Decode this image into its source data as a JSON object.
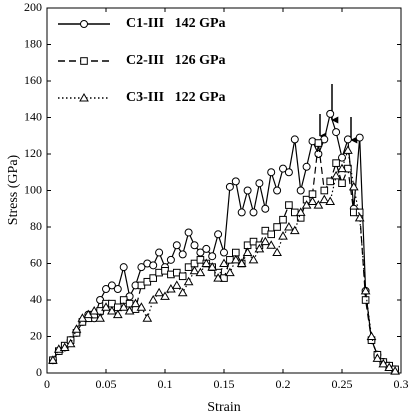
{
  "chart_data": {
    "type": "line",
    "xlabel": "Strain",
    "ylabel": "Stress (GPa)",
    "xlim": [
      0,
      0.3
    ],
    "ylim": [
      0,
      200
    ],
    "xticks": [
      0,
      0.05,
      0.1,
      0.15,
      0.2,
      0.25,
      0.3
    ],
    "yticks": [
      0,
      20,
      40,
      60,
      80,
      100,
      120,
      140,
      160,
      180,
      200
    ],
    "grid": false,
    "legend": "upper left",
    "x": [
      0.005,
      0.01,
      0.015,
      0.02,
      0.025,
      0.03,
      0.035,
      0.04,
      0.045,
      0.05,
      0.055,
      0.06,
      0.065,
      0.07,
      0.075,
      0.08,
      0.085,
      0.09,
      0.095,
      0.1,
      0.105,
      0.11,
      0.115,
      0.12,
      0.125,
      0.13,
      0.135,
      0.14,
      0.145,
      0.15,
      0.155,
      0.16,
      0.165,
      0.17,
      0.175,
      0.18,
      0.185,
      0.19,
      0.195,
      0.2,
      0.205,
      0.21,
      0.215,
      0.22,
      0.225,
      0.23,
      0.235,
      0.24,
      0.245,
      0.25,
      0.255,
      0.26,
      0.265,
      0.27,
      0.275,
      0.28,
      0.285,
      0.29,
      0.295
    ],
    "series": [
      {
        "name": "C1-III   142 GPa",
        "color": "#000000",
        "dash": "solid",
        "marker": "circle",
        "values": [
          7,
          12,
          14,
          18,
          22,
          28,
          32,
          30,
          40,
          46,
          48,
          46,
          58,
          42,
          48,
          58,
          60,
          59,
          66,
          58,
          62,
          70,
          65,
          77,
          70,
          66,
          68,
          64,
          76,
          66,
          102,
          105,
          88,
          100,
          88,
          104,
          90,
          110,
          100,
          112,
          110,
          128,
          100,
          113,
          127,
          120,
          128,
          142,
          132,
          118,
          128,
          90,
          129,
          45,
          18,
          10,
          6,
          4,
          2
        ]
      },
      {
        "name": "C2-III   126 GPa",
        "color": "#000000",
        "dash": "dashed",
        "marker": "square",
        "values": [
          7,
          12,
          15,
          18,
          22,
          28,
          30,
          32,
          34,
          38,
          38,
          36,
          40,
          38,
          35,
          48,
          50,
          52,
          55,
          56,
          54,
          55,
          53,
          58,
          60,
          62,
          60,
          58,
          55,
          52,
          62,
          66,
          60,
          70,
          72,
          70,
          78,
          76,
          80,
          84,
          92,
          88,
          85,
          95,
          98,
          126,
          100,
          105,
          115,
          104,
          112,
          88,
          88,
          40,
          18,
          10,
          6,
          4,
          2
        ]
      },
      {
        "name": "C3-III   122 GPa",
        "color": "#000000",
        "dash": "dotted",
        "marker": "triangle",
        "values": [
          7,
          13,
          14,
          16,
          24,
          30,
          32,
          34,
          30,
          36,
          34,
          32,
          36,
          34,
          38,
          36,
          30,
          40,
          44,
          42,
          46,
          48,
          44,
          50,
          56,
          55,
          60,
          58,
          52,
          60,
          55,
          62,
          60,
          66,
          62,
          68,
          72,
          70,
          66,
          75,
          80,
          78,
          88,
          92,
          94,
          92,
          95,
          94,
          108,
          112,
          122,
          102,
          85,
          45,
          20,
          8,
          5,
          3,
          1
        ]
      }
    ]
  }
}
